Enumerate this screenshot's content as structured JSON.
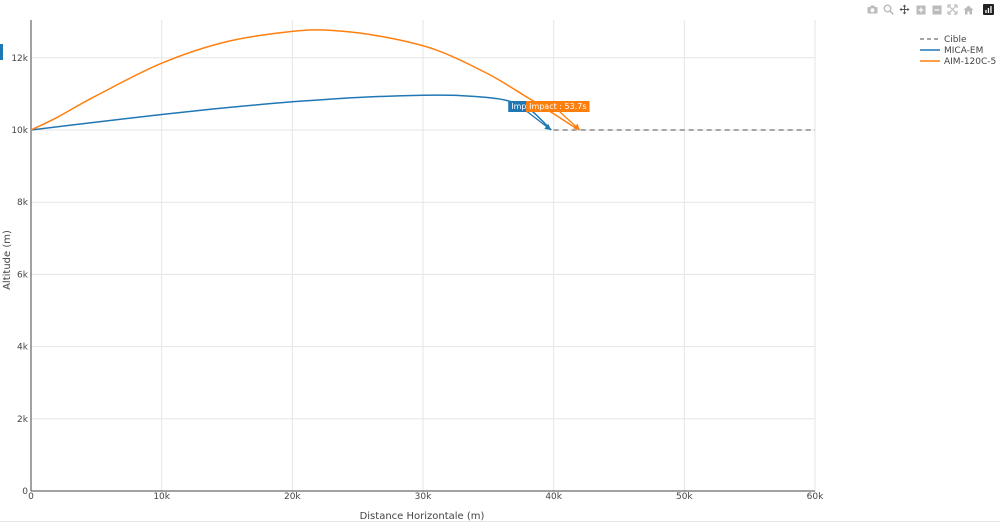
{
  "modebar": {
    "icons": [
      "camera-icon",
      "zoom-icon",
      "pan-icon",
      "zoom-in-icon",
      "zoom-out-icon",
      "autoscale-icon",
      "reset-axes-icon",
      "plotly-logo-icon"
    ]
  },
  "colors": {
    "cible": "#888888",
    "mica": "#1f77b4",
    "aim": "#ff7f0e",
    "grid": "#e5e5e5"
  },
  "chart_data": {
    "type": "line",
    "title": "",
    "xlabel": "Distance Horizontale (m)",
    "ylabel": "Altitude (m)",
    "xlim": [
      0,
      60000
    ],
    "ylim": [
      0,
      13000
    ],
    "x_ticks": [
      0,
      10000,
      20000,
      30000,
      40000,
      50000,
      60000
    ],
    "x_tick_labels": [
      "0",
      "10k",
      "20k",
      "30k",
      "40k",
      "50k",
      "60k"
    ],
    "y_ticks": [
      0,
      2000,
      4000,
      6000,
      8000,
      10000,
      12000
    ],
    "y_tick_labels": [
      "0",
      "2k",
      "4k",
      "6k",
      "8k",
      "10k",
      "12k"
    ],
    "grid": true,
    "legend_position": "top-right",
    "series": [
      {
        "name": "Cible",
        "dash": "dash",
        "x": [
          40000,
          60000
        ],
        "y": [
          10000,
          10000
        ]
      },
      {
        "name": "MICA-EM",
        "dash": "solid",
        "x": [
          0,
          5000,
          10000,
          15000,
          20000,
          25000,
          30000,
          33000,
          36000,
          38000,
          39000,
          39800
        ],
        "y": [
          10000,
          10220,
          10430,
          10620,
          10780,
          10900,
          10960,
          10950,
          10850,
          10600,
          10300,
          10000
        ]
      },
      {
        "name": "AIM-120C-5",
        "dash": "solid",
        "x": [
          0,
          2000,
          5000,
          10000,
          15000,
          20000,
          23000,
          27000,
          31000,
          35000,
          38000,
          40000,
          41500,
          42000
        ],
        "y": [
          10000,
          10350,
          10950,
          11850,
          12450,
          12730,
          12760,
          12580,
          12220,
          11550,
          10900,
          10450,
          10100,
          10000
        ]
      }
    ],
    "annotations": [
      {
        "text": "Impact",
        "series": "MICA-EM",
        "x": 39800,
        "y": 10000
      },
      {
        "text": "Impact : 53.7s",
        "series": "AIM-120C-5",
        "x": 42000,
        "y": 10000
      }
    ]
  }
}
